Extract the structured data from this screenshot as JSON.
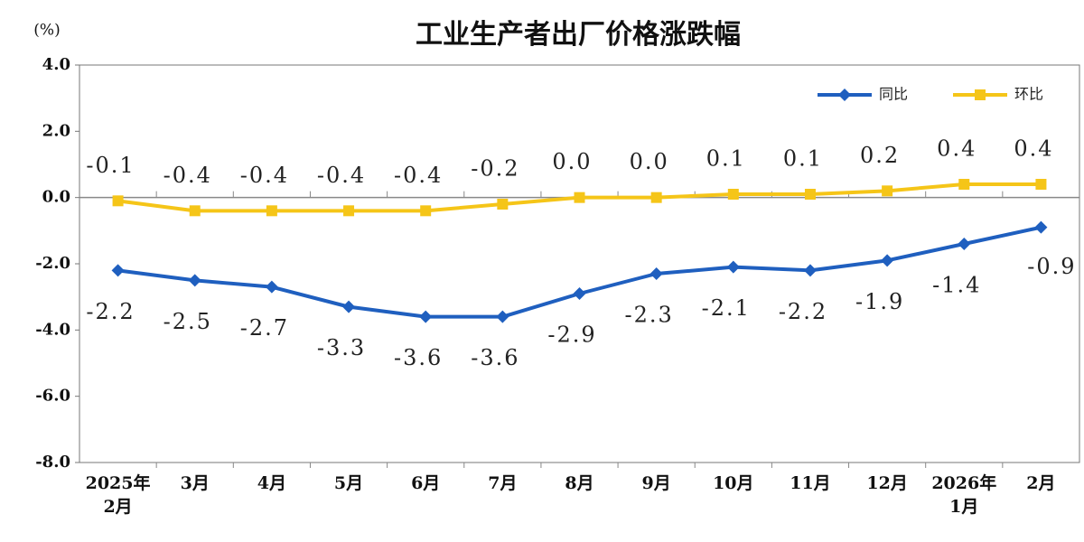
{
  "chart_data": {
    "type": "line",
    "title": "工业生产者出厂价格涨跌幅",
    "y_unit": "(%)",
    "categories": [
      "2025年\n2月",
      "3月",
      "4月",
      "5月",
      "6月",
      "7月",
      "8月",
      "9月",
      "10月",
      "11月",
      "12月",
      "2026年\n1月",
      "2月"
    ],
    "series": [
      {
        "name": "同比",
        "color": "#1f5fbf",
        "marker": "diamond",
        "values": [
          -2.2,
          -2.5,
          -2.7,
          -3.3,
          -3.6,
          -3.6,
          -2.9,
          -2.3,
          -2.1,
          -2.2,
          -1.9,
          -1.4,
          -0.9
        ],
        "value_labels": [
          "-2.2",
          "-2.5",
          "-2.7",
          "-3.3",
          "-3.6",
          "-3.6",
          "-2.9",
          "-2.3",
          "-2.1",
          "-2.2",
          "-1.9",
          "-1.4",
          "-0.9"
        ]
      },
      {
        "name": "环比",
        "color": "#f5c518",
        "marker": "square",
        "values": [
          -0.1,
          -0.4,
          -0.4,
          -0.4,
          -0.4,
          -0.2,
          0.0,
          0.0,
          0.1,
          0.1,
          0.2,
          0.4,
          0.4
        ],
        "value_labels": [
          "-0.1",
          "-0.4",
          "-0.4",
          "-0.4",
          "-0.4",
          "-0.2",
          "0.0",
          "0.0",
          "0.1",
          "0.1",
          "0.2",
          "0.4",
          "0.4"
        ]
      }
    ],
    "ylim": [
      -8,
      4
    ],
    "yticks": [
      {
        "value": -8,
        "label": "-8.0"
      },
      {
        "value": -6,
        "label": "-6.0"
      },
      {
        "value": -4,
        "label": "-4.0"
      },
      {
        "value": -2,
        "label": "-2.0"
      },
      {
        "value": 0,
        "label": "0.0"
      },
      {
        "value": 2,
        "label": "2.0"
      },
      {
        "value": 4,
        "label": "4.0"
      }
    ],
    "legend": "top-right"
  }
}
